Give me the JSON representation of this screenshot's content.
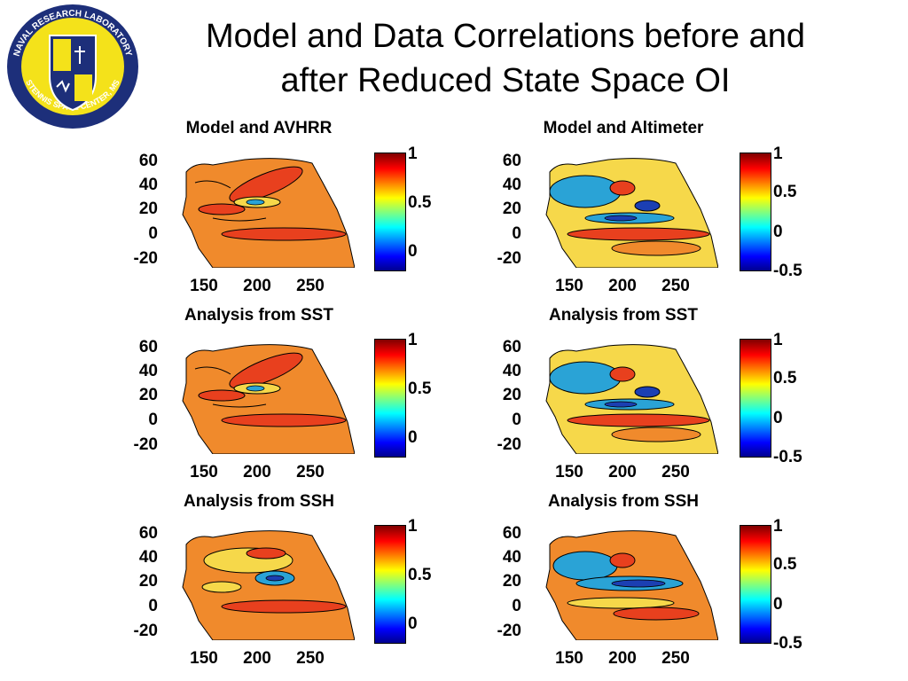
{
  "slide": {
    "title_line1": "Model and Data Correlations before and",
    "title_line2": "after Reduced State Space OI"
  },
  "logo": {
    "top_text": "NAVAL RESEARCH LABORATORY",
    "bottom_text": "STENNIS SPACE CENTER, MS"
  },
  "panels": [
    {
      "title": "Model and AVHRR",
      "y_ticks": [
        "60",
        "40",
        "20",
        "0",
        "-20"
      ],
      "x_ticks": [
        "150",
        "200",
        "250"
      ],
      "colorbar_ticks": [
        "1",
        "0.5",
        "0"
      ]
    },
    {
      "title": "Model and Altimeter",
      "y_ticks": [
        "60",
        "40",
        "20",
        "0",
        "-20"
      ],
      "x_ticks": [
        "150",
        "200",
        "250"
      ],
      "colorbar_ticks": [
        "1",
        "0.5",
        "0",
        "-0.5"
      ]
    },
    {
      "title": "Analysis from SST",
      "y_ticks": [
        "60",
        "40",
        "20",
        "0",
        "-20"
      ],
      "x_ticks": [
        "150",
        "200",
        "250"
      ],
      "colorbar_ticks": [
        "1",
        "0.5",
        "0"
      ]
    },
    {
      "title": "Analysis from SST",
      "y_ticks": [
        "60",
        "40",
        "20",
        "0",
        "-20"
      ],
      "x_ticks": [
        "150",
        "200",
        "250"
      ],
      "colorbar_ticks": [
        "1",
        "0.5",
        "0",
        "-0.5"
      ]
    },
    {
      "title": "Analysis from SSH",
      "y_ticks": [
        "60",
        "40",
        "20",
        "0",
        "-20"
      ],
      "x_ticks": [
        "150",
        "200",
        "250"
      ],
      "colorbar_ticks": [
        "1",
        "0.5",
        "0"
      ]
    },
    {
      "title": "Analysis from SSH",
      "y_ticks": [
        "60",
        "40",
        "20",
        "0",
        "-20"
      ],
      "x_ticks": [
        "150",
        "200",
        "250"
      ],
      "colorbar_ticks": [
        "1",
        "0.5",
        "0",
        "-0.5"
      ]
    }
  ],
  "colors": {
    "map_base": "#f08a2c",
    "high_corr": "#e8401e",
    "mid_corr": "#f6d84a",
    "low_corr": "#2aa3d6",
    "neg_corr": "#1b3fb3"
  }
}
